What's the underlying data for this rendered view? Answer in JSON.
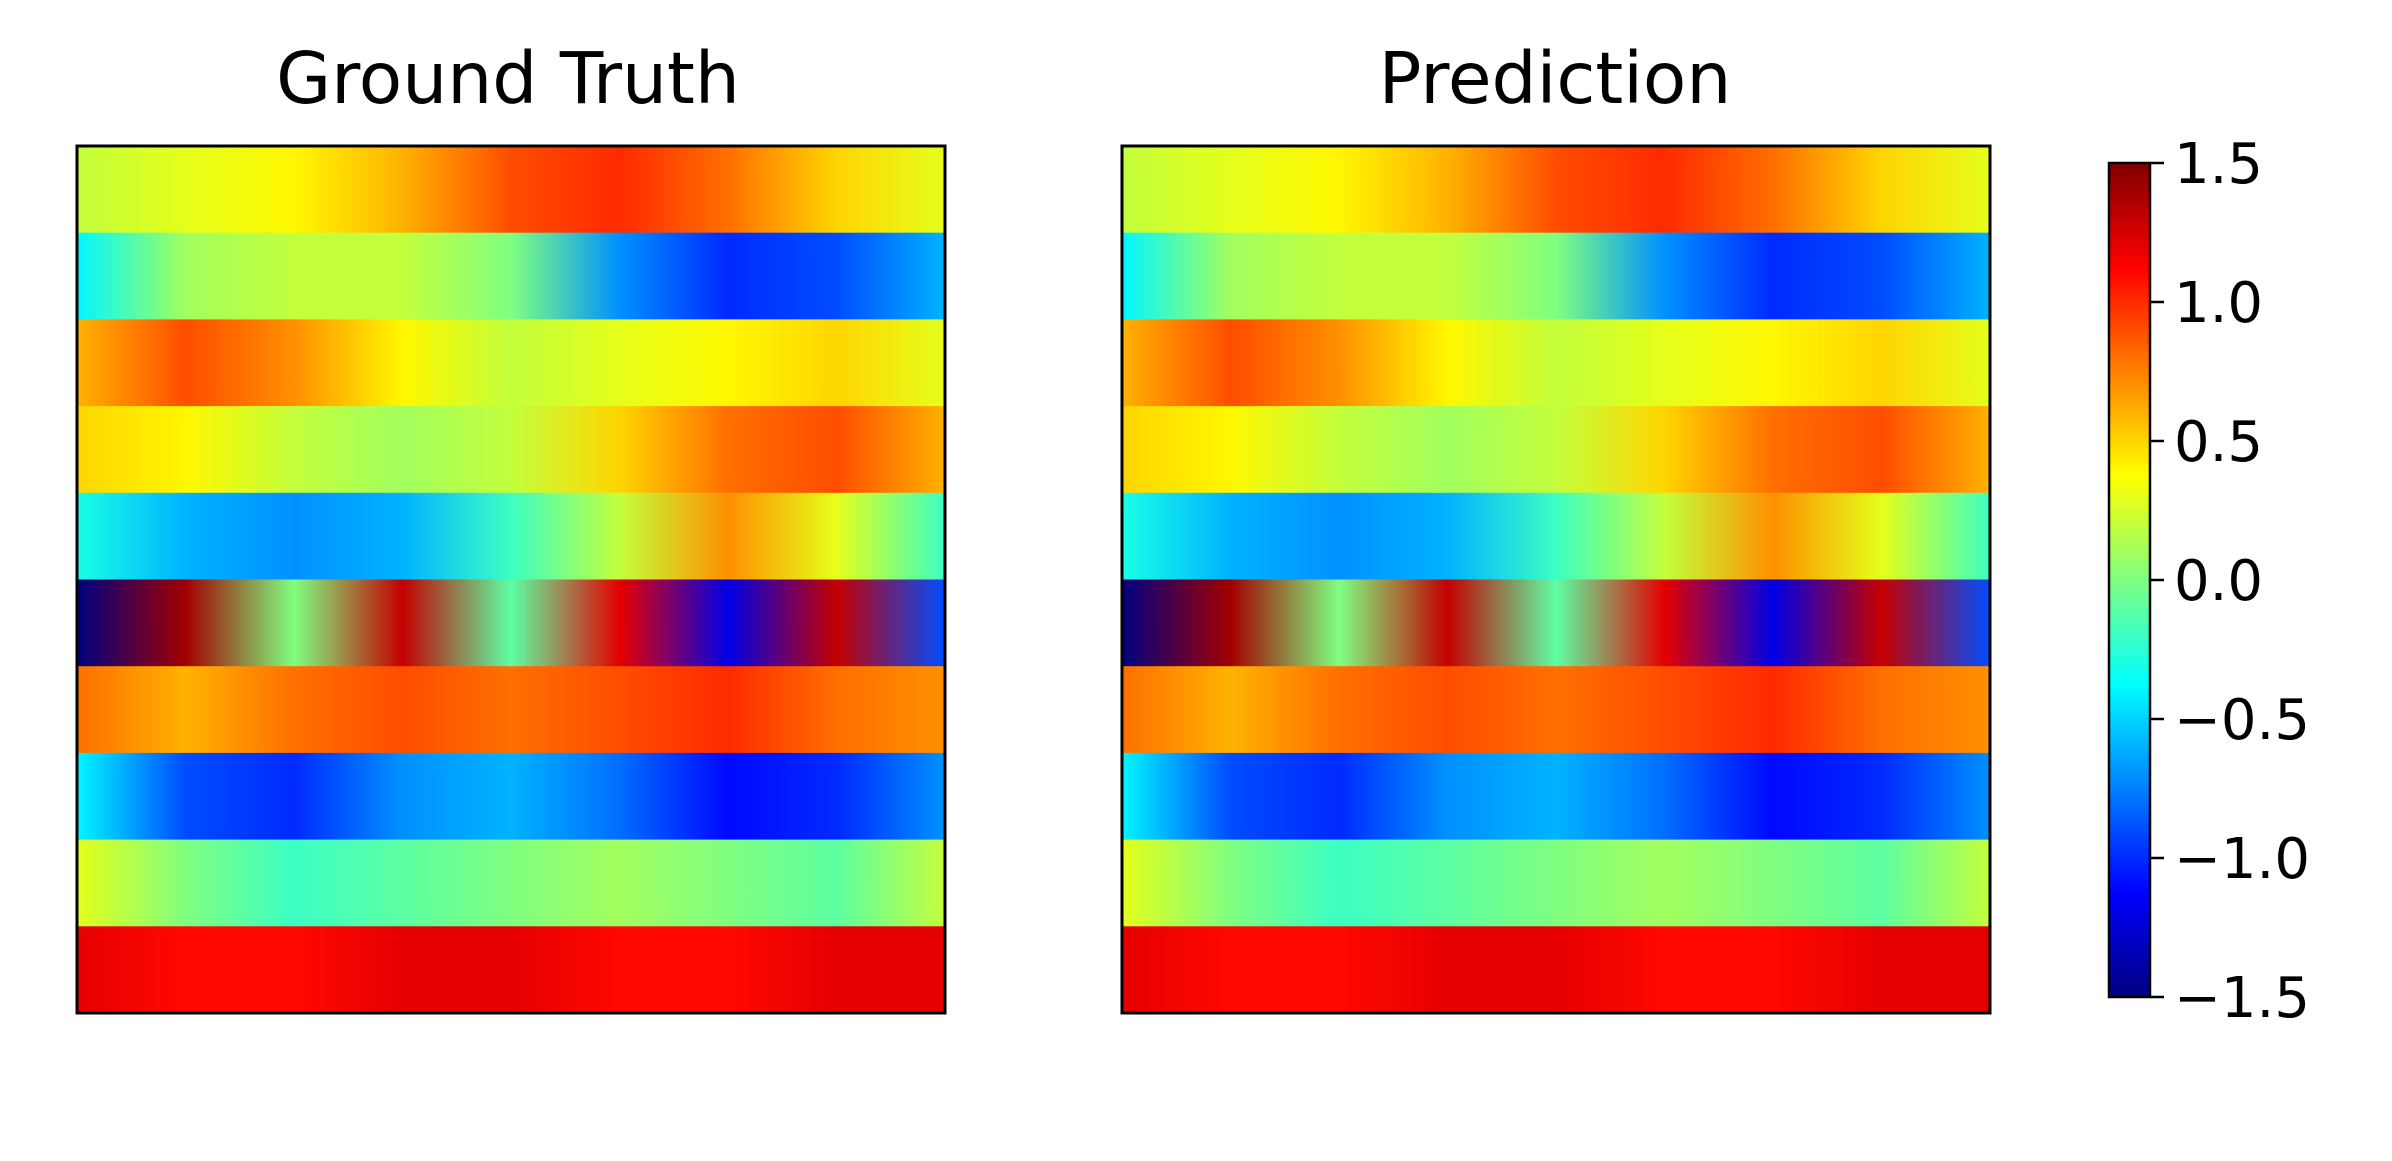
{
  "chart_data": [
    {
      "type": "heatmap",
      "title": "Ground Truth",
      "colormap": "jet",
      "vmin": -1.5,
      "vmax": 1.5,
      "axes_ticks": false,
      "rows_top_to_bottom": [
        [
          0.2,
          0.3,
          0.4,
          0.6,
          0.9,
          1.0,
          0.8,
          0.5,
          0.3
        ],
        [
          -0.4,
          0.1,
          0.2,
          0.2,
          0.0,
          -0.7,
          -1.0,
          -0.9,
          -0.6
        ],
        [
          0.6,
          0.9,
          0.7,
          0.4,
          0.2,
          0.3,
          0.4,
          0.5,
          0.3
        ],
        [
          0.5,
          0.4,
          0.2,
          0.1,
          0.2,
          0.5,
          0.8,
          0.9,
          0.6
        ],
        [
          -0.3,
          -0.6,
          -0.7,
          -0.6,
          -0.2,
          0.2,
          0.7,
          0.3,
          -0.2
        ],
        [
          -1.5,
          1.4,
          0.0,
          1.3,
          -0.1,
          1.2,
          -1.2,
          1.3,
          -0.9
        ],
        [
          0.8,
          0.6,
          0.8,
          0.9,
          0.8,
          0.9,
          1.0,
          0.8,
          0.7
        ],
        [
          -0.4,
          -0.9,
          -1.0,
          -0.7,
          -0.6,
          -0.8,
          -1.1,
          -1.0,
          -0.7
        ],
        [
          0.3,
          0.0,
          -0.2,
          -0.1,
          0.0,
          0.1,
          0.0,
          -0.1,
          0.2
        ],
        [
          1.2,
          1.1,
          1.1,
          1.2,
          1.2,
          1.1,
          1.1,
          1.2,
          1.2
        ]
      ]
    },
    {
      "type": "heatmap",
      "title": "Prediction",
      "colormap": "jet",
      "vmin": -1.5,
      "vmax": 1.5,
      "axes_ticks": false,
      "rows_top_to_bottom": [
        [
          0.2,
          0.3,
          0.4,
          0.6,
          0.9,
          1.0,
          0.8,
          0.5,
          0.3
        ],
        [
          -0.4,
          0.1,
          0.2,
          0.2,
          0.0,
          -0.7,
          -1.0,
          -0.9,
          -0.6
        ],
        [
          0.6,
          0.9,
          0.7,
          0.4,
          0.2,
          0.3,
          0.4,
          0.5,
          0.3
        ],
        [
          0.5,
          0.4,
          0.2,
          0.1,
          0.2,
          0.5,
          0.8,
          0.9,
          0.6
        ],
        [
          -0.3,
          -0.6,
          -0.7,
          -0.6,
          -0.2,
          0.2,
          0.7,
          0.3,
          -0.2
        ],
        [
          -1.5,
          1.4,
          0.0,
          1.3,
          -0.1,
          1.2,
          -1.2,
          1.3,
          -0.9
        ],
        [
          0.8,
          0.6,
          0.8,
          0.9,
          0.8,
          0.9,
          1.0,
          0.8,
          0.7
        ],
        [
          -0.4,
          -0.9,
          -1.0,
          -0.7,
          -0.6,
          -0.8,
          -1.1,
          -1.0,
          -0.7
        ],
        [
          0.3,
          0.0,
          -0.2,
          -0.1,
          0.0,
          0.1,
          0.0,
          -0.1,
          0.2
        ],
        [
          1.2,
          1.1,
          1.1,
          1.2,
          1.2,
          1.1,
          1.1,
          1.2,
          1.2
        ]
      ]
    }
  ],
  "colorbar": {
    "ticks": [
      1.5,
      1.0,
      0.5,
      0.0,
      -0.5,
      -1.0,
      -1.5
    ],
    "tick_labels": [
      "1.5",
      "1.0",
      "0.5",
      "0.0",
      "−0.5",
      "−1.0",
      "−1.5"
    ],
    "colormap": "jet"
  }
}
